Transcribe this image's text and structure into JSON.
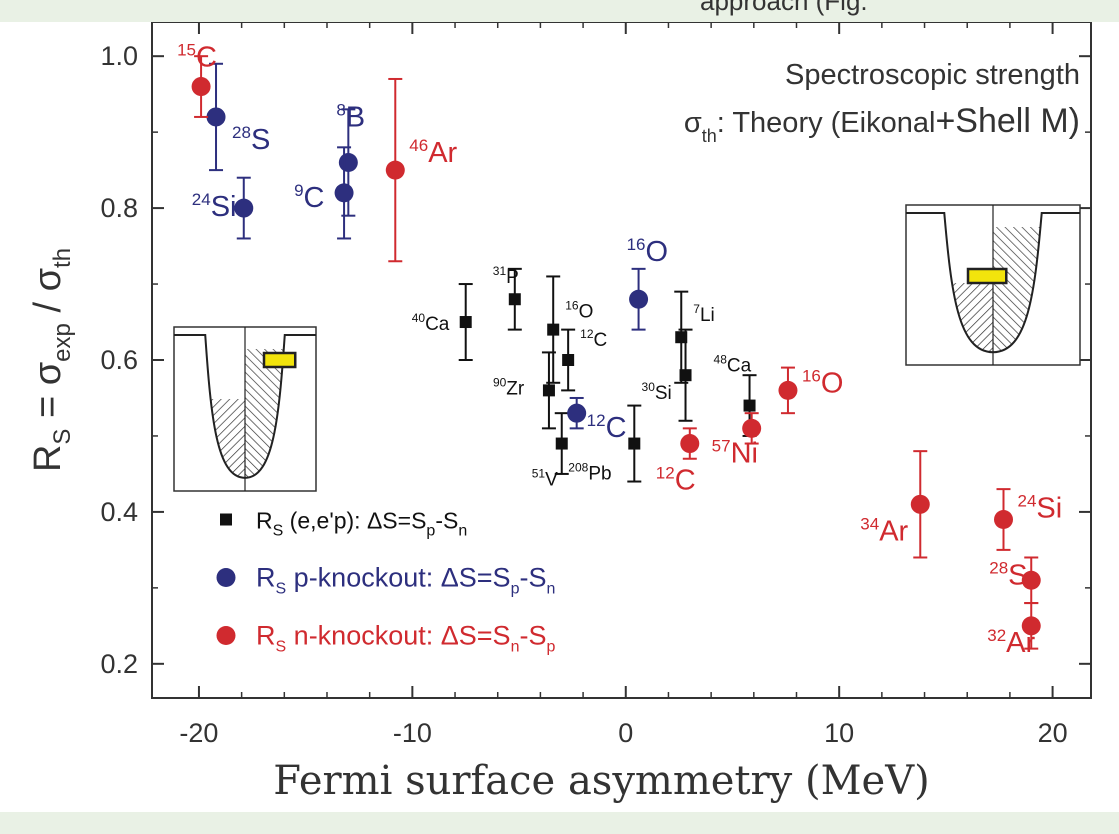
{
  "chart_data": {
    "type": "scatter",
    "title": "",
    "annotation": {
      "line1": "Spectroscopic strength",
      "line2_sym": "σ",
      "line2_sub": "th",
      "line2_rest": ": Theory (Eikonal",
      "line2_tail": "+Shell M)"
    },
    "cut_caption": "approach (Fig.",
    "xlabel": "Fermi surface asymmetry (MeV)",
    "ylabel": {
      "R": "R",
      "Rsub": "S",
      "eq": " = σ",
      "sub1": "exp",
      "slash": " / σ",
      "sub2": "th"
    },
    "xlim": [
      -22.2,
      21.8
    ],
    "ylim": [
      0.155,
      1.045
    ],
    "xticks": [
      "-20",
      "-10",
      "0",
      "10",
      "20"
    ],
    "yticks": [
      "0.2",
      "0.4",
      "0.6",
      "0.8",
      "1.0"
    ],
    "xtick_values": [
      -20,
      -10,
      0,
      10,
      20
    ],
    "ytick_values": [
      0.2,
      0.4,
      0.6,
      0.8,
      1.0
    ],
    "grid": false,
    "legend_position": "bottom-left",
    "colors": {
      "ee": "#111111",
      "p": "#2d2f7e",
      "n": "#d02a2f",
      "axis": "#333333",
      "text": "#333333",
      "well_fill": "#f2e40c"
    },
    "legend": [
      {
        "series": "ee",
        "R": "R",
        "sub": "S",
        "text": " (e,e'p): ΔS=S",
        "s1": "p",
        "mid": "-S",
        "s2": "n"
      },
      {
        "series": "p",
        "R": "R",
        "sub": "S",
        "text": " p-knockout: ΔS=S",
        "s1": "p",
        "mid": "-S",
        "s2": "n"
      },
      {
        "series": "n",
        "R": "R",
        "sub": "S",
        "text": " n-knockout: ΔS=S",
        "s1": "n",
        "mid": "-S",
        "s2": "p"
      }
    ],
    "series": [
      {
        "key": "ee",
        "marker": "square",
        "points": [
          {
            "x": -7.5,
            "y": 0.65,
            "err": 0.05,
            "mass": "40",
            "el": "Ca"
          },
          {
            "x": -5.2,
            "y": 0.68,
            "err": 0.04,
            "mass": "31",
            "el": "P"
          },
          {
            "x": -3.4,
            "y": 0.64,
            "err": 0.07,
            "mass": "16",
            "el": "O"
          },
          {
            "x": -3.6,
            "y": 0.56,
            "err": 0.05,
            "mass": "90",
            "el": "Zr"
          },
          {
            "x": -2.7,
            "y": 0.6,
            "err": 0.04,
            "mass": "12",
            "el": "C"
          },
          {
            "x": -3.0,
            "y": 0.49,
            "err": 0.04,
            "mass": "51",
            "el": "V"
          },
          {
            "x": 0.4,
            "y": 0.49,
            "err": 0.05,
            "mass": "208",
            "el": "Pb"
          },
          {
            "x": 2.6,
            "y": 0.63,
            "err": 0.06,
            "mass": "7",
            "el": "Li"
          },
          {
            "x": 2.8,
            "y": 0.58,
            "err": 0.06,
            "mass": "30",
            "el": "Si"
          },
          {
            "x": 5.8,
            "y": 0.54,
            "err": 0.04,
            "mass": "48",
            "el": "Ca"
          }
        ]
      },
      {
        "key": "p",
        "marker": "circle",
        "points": [
          {
            "x": -19.2,
            "y": 0.92,
            "err": 0.07,
            "mass": "28",
            "el": "S"
          },
          {
            "x": -17.9,
            "y": 0.8,
            "err": 0.04,
            "mass": "24",
            "el": "Si"
          },
          {
            "x": -13.0,
            "y": 0.86,
            "err": 0.07,
            "mass": "8",
            "el": "B"
          },
          {
            "x": -13.2,
            "y": 0.82,
            "err": 0.06,
            "mass": "9",
            "el": "C"
          },
          {
            "x": 0.6,
            "y": 0.68,
            "err": 0.04,
            "mass": "16",
            "el": "O"
          },
          {
            "x": -2.3,
            "y": 0.53,
            "err": 0.02,
            "mass": "12",
            "el": "C"
          }
        ]
      },
      {
        "key": "n",
        "marker": "circle",
        "points": [
          {
            "x": -19.9,
            "y": 0.96,
            "err": 0.04,
            "mass": "15",
            "el": "C"
          },
          {
            "x": -10.8,
            "y": 0.85,
            "err": 0.12,
            "mass": "46",
            "el": "Ar"
          },
          {
            "x": 3.0,
            "y": 0.49,
            "err": 0.02,
            "mass": "12",
            "el": "C"
          },
          {
            "x": 5.9,
            "y": 0.51,
            "err": 0.02,
            "mass": "57",
            "el": "Ni"
          },
          {
            "x": 7.6,
            "y": 0.56,
            "err": 0.03,
            "mass": "16",
            "el": "O"
          },
          {
            "x": 13.8,
            "y": 0.41,
            "err": 0.07,
            "mass": "34",
            "el": "Ar"
          },
          {
            "x": 17.7,
            "y": 0.39,
            "err": 0.04,
            "mass": "24",
            "el": "Si"
          },
          {
            "x": 19.0,
            "y": 0.31,
            "err": 0.03,
            "mass": "28",
            "el": "S"
          },
          {
            "x": 19.0,
            "y": 0.25,
            "err": 0.03,
            "mass": "32",
            "el": "Ar"
          }
        ]
      }
    ]
  }
}
